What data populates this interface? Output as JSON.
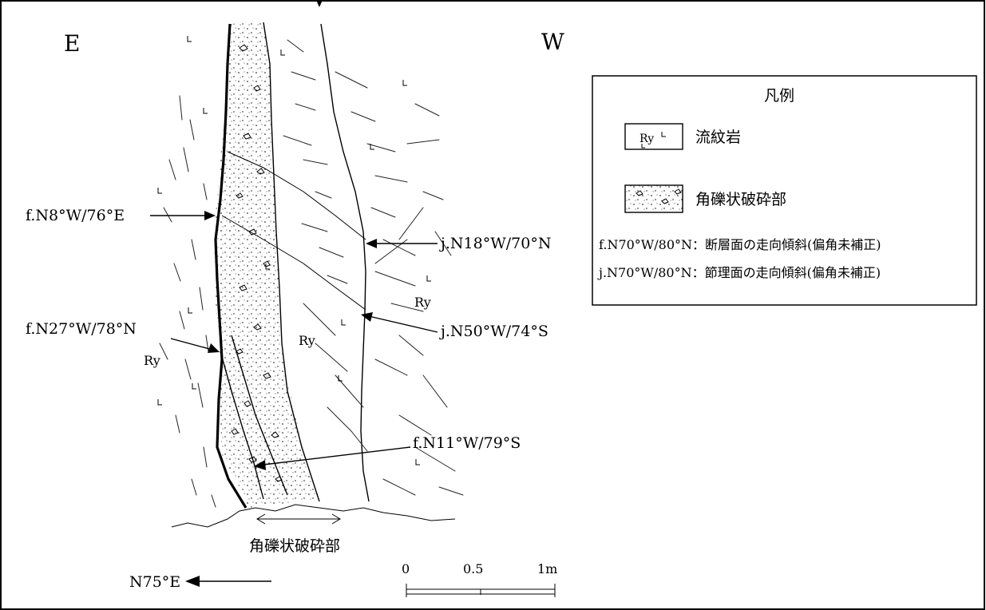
{
  "directions": {
    "east": "E",
    "west": "W"
  },
  "labels": {
    "fault1": "f.N8°W/76°E",
    "fault2": "f.N27°W/78°N",
    "fault3": "f.N11°W/79°S",
    "joint1": "j.N18°W/70°N",
    "joint2": "j.N50°W/74°S",
    "ry": "Ry"
  },
  "breccia_caption": "角礫状破砕部",
  "orientation": "N75°E",
  "scale_bar": {
    "ticks": [
      "0",
      "0.5",
      "1m"
    ]
  },
  "legend": {
    "title": "凡例",
    "items": [
      {
        "swatch_text": "Ry",
        "label": "流紋岩"
      },
      {
        "swatch_text": "",
        "label": "角礫状破砕部"
      }
    ],
    "notes": [
      "f.N70°W/80°N：断層面の走向傾斜(偏角未補正)",
      "j.N70°W/80°N：節理面の走向傾斜(偏角未補正)"
    ]
  }
}
